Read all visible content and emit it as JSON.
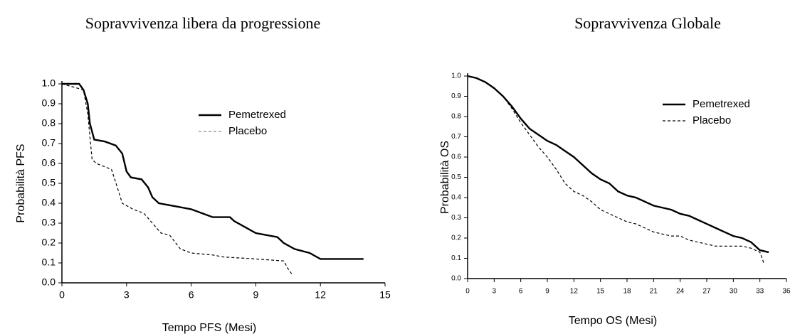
{
  "chart_data": [
    {
      "type": "line",
      "title": "Sopravvivenza libera da progressione",
      "xlabel": "Tempo PFS (Mesi)",
      "ylabel": "Probabilità PFS",
      "xlim": [
        0,
        15
      ],
      "xticks": [
        0,
        3,
        6,
        9,
        12,
        15
      ],
      "ylim": [
        0,
        1
      ],
      "yticks": [
        {
          "value": 0,
          "label": "0.0"
        },
        0.1,
        0.2,
        0.3,
        0.4,
        0.5,
        0.6,
        0.7,
        0.8,
        0.9,
        {
          "value": 1,
          "label": "1.0"
        }
      ],
      "series": [
        {
          "name": "Pemetrexed",
          "color": "#000000",
          "dash": false,
          "legend_color": "#000000",
          "x": [
            0,
            0.8,
            1.0,
            1.2,
            1.3,
            1.5,
            2.0,
            2.5,
            2.8,
            3.0,
            3.2,
            3.7,
            4.0,
            4.2,
            4.5,
            5.0,
            5.5,
            6.0,
            6.5,
            7.0,
            7.8,
            8.0,
            8.5,
            9.0,
            9.5,
            10.0,
            10.3,
            10.8,
            11.5,
            12.0,
            14.0
          ],
          "values": [
            1.0,
            1.0,
            0.97,
            0.9,
            0.8,
            0.72,
            0.71,
            0.69,
            0.65,
            0.56,
            0.53,
            0.52,
            0.48,
            0.43,
            0.4,
            0.39,
            0.38,
            0.37,
            0.35,
            0.33,
            0.33,
            0.31,
            0.28,
            0.25,
            0.24,
            0.23,
            0.2,
            0.17,
            0.15,
            0.12,
            0.12
          ]
        },
        {
          "name": "Placebo",
          "color": "#000000",
          "dash": true,
          "legend_color": "#888888",
          "x": [
            0,
            1.0,
            1.2,
            1.4,
            1.6,
            2.3,
            2.6,
            2.8,
            3.3,
            3.8,
            4.2,
            4.6,
            5.0,
            5.5,
            6.0,
            7.0,
            7.5,
            9.0,
            10.3,
            10.5,
            10.7
          ],
          "values": [
            1.0,
            0.97,
            0.85,
            0.62,
            0.6,
            0.57,
            0.47,
            0.4,
            0.37,
            0.35,
            0.3,
            0.25,
            0.24,
            0.17,
            0.15,
            0.14,
            0.13,
            0.12,
            0.11,
            0.07,
            0.04
          ]
        }
      ]
    },
    {
      "type": "line",
      "title": "Sopravvivenza Globale",
      "xlabel": "Tempo OS (Mesi)",
      "ylabel": "Probabilità OS",
      "xlim": [
        0,
        36
      ],
      "xticks": [
        0,
        3,
        6,
        9,
        12,
        15,
        18,
        21,
        24,
        27,
        30,
        33,
        36
      ],
      "ylim": [
        0,
        1
      ],
      "yticks": [
        {
          "value": 0,
          "label": "0.0"
        },
        0.1,
        0.2,
        0.3,
        0.4,
        0.5,
        0.6,
        0.7,
        0.8,
        0.9,
        {
          "value": 1,
          "label": "1.0"
        }
      ],
      "series": [
        {
          "name": "Pemetrexed",
          "color": "#000000",
          "dash": false,
          "legend_color": "#000000",
          "x": [
            0,
            1,
            2,
            3,
            4,
            5,
            6,
            7,
            8,
            9,
            10,
            11,
            12,
            13,
            14,
            15,
            16,
            17,
            18,
            19,
            20,
            21,
            22,
            23,
            24,
            25,
            26,
            27,
            28,
            29,
            30,
            31,
            32,
            33,
            34
          ],
          "values": [
            1.0,
            0.99,
            0.97,
            0.94,
            0.9,
            0.85,
            0.79,
            0.74,
            0.71,
            0.68,
            0.66,
            0.63,
            0.6,
            0.56,
            0.52,
            0.49,
            0.47,
            0.43,
            0.41,
            0.4,
            0.38,
            0.36,
            0.35,
            0.34,
            0.32,
            0.31,
            0.29,
            0.27,
            0.25,
            0.23,
            0.21,
            0.2,
            0.18,
            0.14,
            0.13
          ]
        },
        {
          "name": "Placebo",
          "color": "#000000",
          "dash": true,
          "legend_color": "#000000",
          "x": [
            0,
            1,
            2,
            3,
            4,
            5,
            6,
            7,
            8,
            9,
            10,
            11,
            12,
            13,
            14,
            15,
            16,
            17,
            18,
            19,
            20,
            21,
            22,
            23,
            24,
            25,
            26,
            27,
            28,
            29,
            30,
            31,
            32,
            33,
            33.5
          ],
          "values": [
            1.0,
            0.99,
            0.97,
            0.94,
            0.9,
            0.84,
            0.77,
            0.71,
            0.65,
            0.6,
            0.54,
            0.47,
            0.43,
            0.41,
            0.38,
            0.34,
            0.32,
            0.3,
            0.28,
            0.27,
            0.25,
            0.23,
            0.22,
            0.21,
            0.21,
            0.19,
            0.18,
            0.17,
            0.16,
            0.16,
            0.16,
            0.16,
            0.15,
            0.13,
            0.07
          ]
        }
      ]
    }
  ]
}
